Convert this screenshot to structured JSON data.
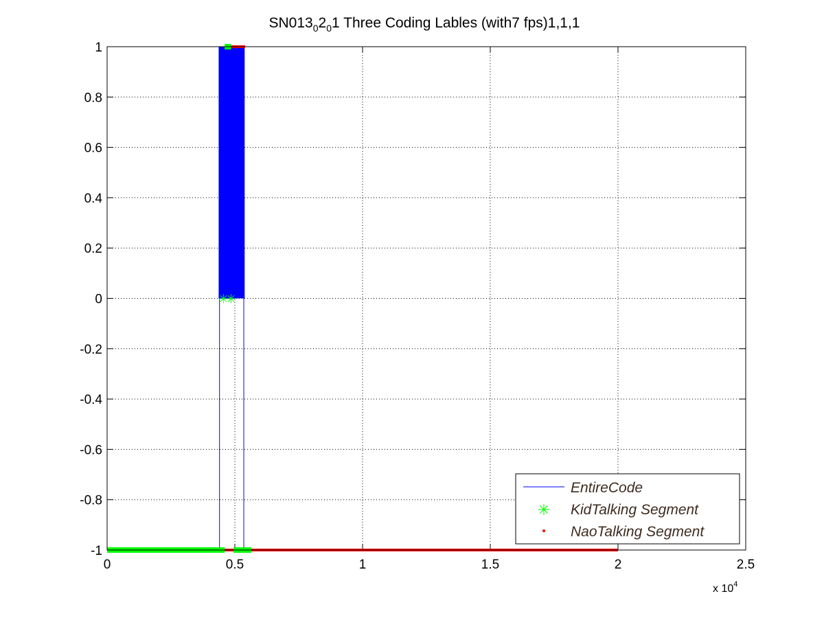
{
  "figure": {
    "title_parts": [
      "SN013",
      "0",
      "2",
      "0",
      "1 Three Coding Lables (with7 fps)1,1,1"
    ],
    "exponent_base": "x 10",
    "exponent_power": "4"
  },
  "chart_data": {
    "type": "line",
    "title": "SN013_0_2_0_1 Three Coding Lables (with7 fps)1,1,1",
    "xlabel": "",
    "ylabel": "",
    "x_scale_note": "x 10^4",
    "xlim": [
      0,
      25000
    ],
    "ylim": [
      -1,
      1
    ],
    "grid": true,
    "legend_position": "bottom-right",
    "x_ticks": [
      0,
      5000,
      10000,
      15000,
      20000,
      25000
    ],
    "x_tick_labels": [
      "0",
      "0.5",
      "1",
      "1.5",
      "2",
      "2.5"
    ],
    "y_ticks": [
      -1,
      -0.8,
      -0.6,
      -0.4,
      -0.2,
      0,
      0.2,
      0.4,
      0.6,
      0.8,
      1
    ],
    "y_tick_labels": [
      "-1",
      "-0.8",
      "-0.6",
      "-0.4",
      "-0.2",
      "0",
      "0.2",
      "0.4",
      "0.6",
      "0.8",
      "1"
    ],
    "series": [
      {
        "name": "EntireCode",
        "style": "line",
        "color": "#0000ff",
        "segments": [
          {
            "x_start": 0,
            "x_end": 4400,
            "y": -1
          },
          {
            "x_start": 4400,
            "x_end": 4400,
            "y_range": [
              -1,
              0
            ]
          },
          {
            "x_start": 4400,
            "x_end": 5350,
            "y_range": [
              0,
              1
            ],
            "note": "rapid alternation between 0 and 1"
          },
          {
            "x_start": 5350,
            "x_end": 20000,
            "y": -1
          }
        ]
      },
      {
        "name": "KidTalking Segment",
        "style": "marker-star",
        "color": "#00ff00",
        "segments": [
          {
            "x_start": 0,
            "x_end": 4600,
            "y": -1
          },
          {
            "x_start": 4600,
            "x_end": 4850,
            "y": 1
          },
          {
            "x_start": 4550,
            "x_end": 4850,
            "y": 0
          },
          {
            "x_start": 4950,
            "x_end": 5650,
            "y": -1
          }
        ]
      },
      {
        "name": "NaoTalking Segment",
        "style": "marker-dot",
        "color": "#ff0000",
        "segments": [
          {
            "x_start": 0,
            "x_end": 20000,
            "y": -1
          },
          {
            "x_start": 4850,
            "x_end": 5400,
            "y": 1
          }
        ]
      }
    ]
  }
}
